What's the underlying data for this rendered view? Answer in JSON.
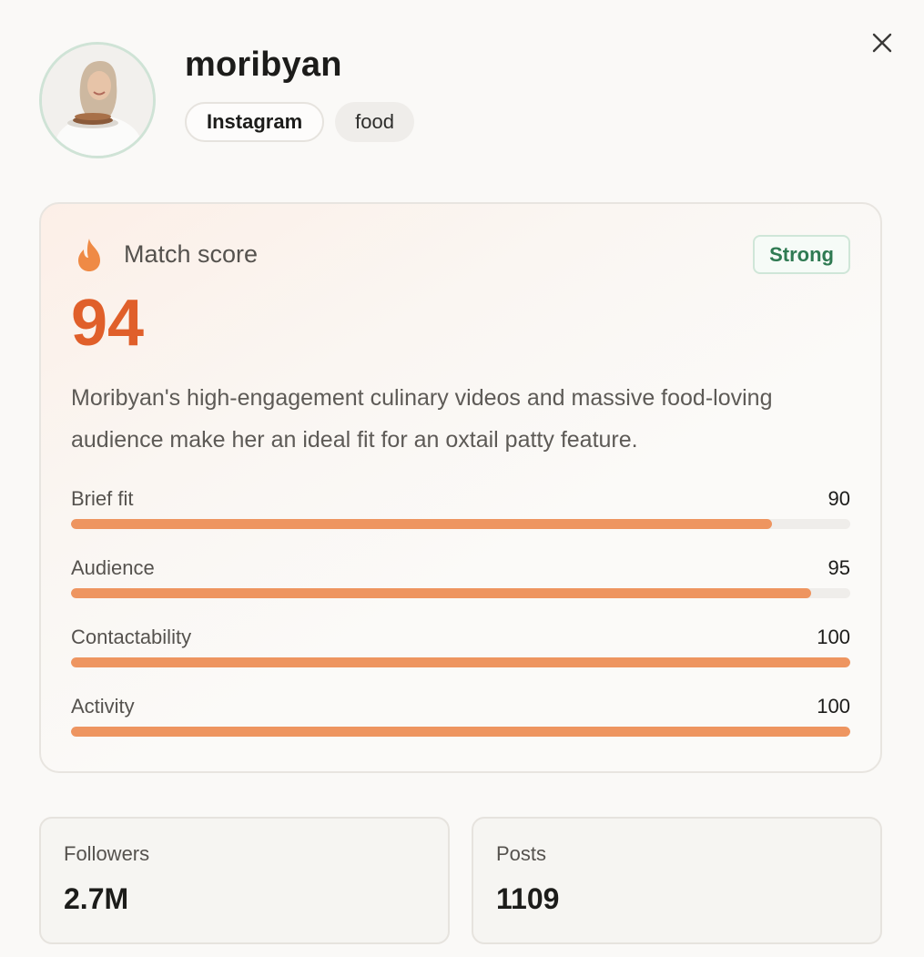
{
  "profile": {
    "username": "moribyan",
    "platform": "Instagram",
    "niche": "food"
  },
  "match": {
    "label": "Match score",
    "badge": "Strong",
    "score": "94",
    "description": "Moribyan's high-engagement culinary videos and massive food-loving audience make her an ideal fit for an oxtail patty feature."
  },
  "metrics": [
    {
      "name": "Brief fit",
      "value": "90",
      "percent": 90
    },
    {
      "name": "Audience",
      "value": "95",
      "percent": 95
    },
    {
      "name": "Contactability",
      "value": "100",
      "percent": 100
    },
    {
      "name": "Activity",
      "value": "100",
      "percent": 100
    }
  ],
  "stats": {
    "followers_label": "Followers",
    "followers_value": "2.7M",
    "posts_label": "Posts",
    "posts_value": "1109"
  },
  "colors": {
    "accent": "#e05f2a",
    "bar": "#ee9560",
    "strong": "#2f7a52"
  },
  "icons": {
    "close": "close-icon",
    "match": "flame-icon"
  }
}
